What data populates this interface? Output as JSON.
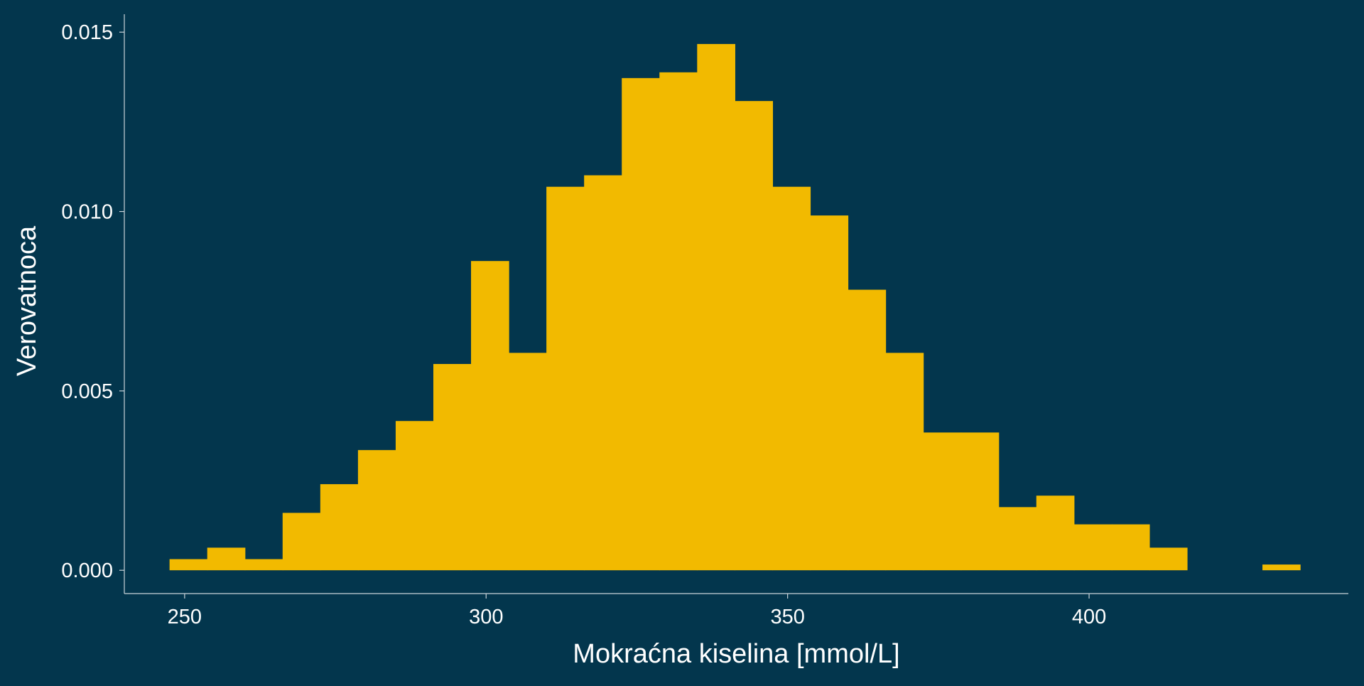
{
  "chart_data": {
    "type": "bar",
    "xlabel": "Mokraćna kiselina [mmol/L]",
    "ylabel": "Verovatnoca",
    "xlim": [
      240,
      443
    ],
    "ylim": [
      -0.00065,
      0.0155
    ],
    "xticks": [
      250,
      300,
      350,
      400
    ],
    "xtick_labels": [
      "250",
      "300",
      "350",
      "400"
    ],
    "yticks": [
      0.0,
      0.005,
      0.01,
      0.015
    ],
    "ytick_labels": [
      "0.000",
      "0.005",
      "0.010",
      "0.015"
    ],
    "grid": false,
    "bins": [
      {
        "x0": 247.5,
        "x1": 253.75,
        "value": 0.00031
      },
      {
        "x0": 253.75,
        "x1": 260.0,
        "value": 0.00063
      },
      {
        "x0": 260.0,
        "x1": 266.25,
        "value": 0.00031
      },
      {
        "x0": 266.25,
        "x1": 272.5,
        "value": 0.0016
      },
      {
        "x0": 272.5,
        "x1": 278.75,
        "value": 0.0024
      },
      {
        "x0": 278.75,
        "x1": 285.0,
        "value": 0.00335
      },
      {
        "x0": 285.0,
        "x1": 291.25,
        "value": 0.00416
      },
      {
        "x0": 291.25,
        "x1": 297.5,
        "value": 0.00575
      },
      {
        "x0": 297.5,
        "x1": 303.75,
        "value": 0.00862
      },
      {
        "x0": 303.75,
        "x1": 310.0,
        "value": 0.00606
      },
      {
        "x0": 310.0,
        "x1": 316.25,
        "value": 0.01069
      },
      {
        "x0": 316.25,
        "x1": 322.5,
        "value": 0.01101
      },
      {
        "x0": 322.5,
        "x1": 328.75,
        "value": 0.01372
      },
      {
        "x0": 328.75,
        "x1": 335.0,
        "value": 0.01388
      },
      {
        "x0": 335.0,
        "x1": 341.25,
        "value": 0.01467
      },
      {
        "x0": 341.25,
        "x1": 347.5,
        "value": 0.01308
      },
      {
        "x0": 347.5,
        "x1": 353.75,
        "value": 0.01069
      },
      {
        "x0": 353.75,
        "x1": 360.0,
        "value": 0.00989
      },
      {
        "x0": 360.0,
        "x1": 366.25,
        "value": 0.00782
      },
      {
        "x0": 366.25,
        "x1": 372.5,
        "value": 0.00606
      },
      {
        "x0": 372.5,
        "x1": 378.75,
        "value": 0.00384
      },
      {
        "x0": 378.75,
        "x1": 385.0,
        "value": 0.00384
      },
      {
        "x0": 385.0,
        "x1": 391.25,
        "value": 0.00176
      },
      {
        "x0": 391.25,
        "x1": 397.5,
        "value": 0.00208
      },
      {
        "x0": 397.5,
        "x1": 403.75,
        "value": 0.00128
      },
      {
        "x0": 403.75,
        "x1": 410.0,
        "value": 0.00128
      },
      {
        "x0": 410.0,
        "x1": 416.25,
        "value": 0.00063
      },
      {
        "x0": 416.25,
        "x1": 422.5,
        "value": 0.0
      },
      {
        "x0": 422.5,
        "x1": 428.75,
        "value": 0.0
      },
      {
        "x0": 428.75,
        "x1": 435.0,
        "value": 0.00016
      }
    ],
    "colors": {
      "background": "#03364D",
      "bar": "#F2BA00",
      "axis": "#C9D3D9",
      "text": "#FFFFFF"
    }
  }
}
